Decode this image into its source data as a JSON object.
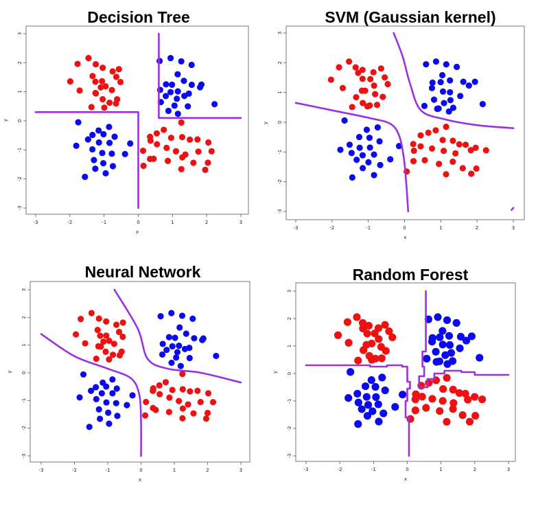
{
  "colors": {
    "red": "#ee1111",
    "blue": "#0a0aee",
    "boundary": "#9b30e0"
  },
  "chart_data": [
    {
      "type": "scatter",
      "title": "Decision Tree",
      "xlabel": "x",
      "ylabel": "y",
      "xlim": [
        -3,
        3
      ],
      "ylim": [
        -3,
        3
      ],
      "ticks": [
        "-3",
        "-2",
        "-1",
        "0",
        "1",
        "2",
        "3"
      ],
      "boundary_style": "step",
      "boundary": [
        [
          [
            -3,
            0.3
          ],
          [
            0,
            0.3
          ],
          [
            0,
            -3
          ]
        ],
        [
          [
            0.6,
            3
          ],
          [
            0.6,
            0.1
          ],
          [
            3,
            0.1
          ]
        ]
      ]
    },
    {
      "type": "scatter",
      "title": "SVM (Gaussian kernel)",
      "xlabel": "x",
      "ylabel": "y",
      "xlim": [
        -3,
        3
      ],
      "ylim": [
        -3,
        3
      ],
      "ticks": [
        "-3",
        "-2",
        "-1",
        "0",
        "1",
        "2",
        "3"
      ],
      "boundary_style": "smooth",
      "boundary": [
        [
          [
            -3,
            0.65
          ],
          [
            -2,
            0.4
          ],
          [
            -1,
            0.15
          ],
          [
            -0.4,
            -0.05
          ],
          [
            -0.15,
            -0.45
          ],
          [
            -0.02,
            -1.2
          ],
          [
            0.05,
            -2.1
          ],
          [
            0.1,
            -3
          ]
        ],
        [
          [
            -0.3,
            3
          ],
          [
            -0.05,
            2.2
          ],
          [
            0.15,
            1.3
          ],
          [
            0.45,
            0.4
          ],
          [
            1.1,
            0.1
          ],
          [
            2.0,
            -0.1
          ],
          [
            3,
            -0.2
          ]
        ],
        [
          [
            2.95,
            -2.95
          ],
          [
            3,
            -2.88
          ]
        ]
      ]
    },
    {
      "type": "scatter",
      "title": "Neural Network",
      "xlabel": "x",
      "ylabel": "y",
      "xlim": [
        -3,
        3
      ],
      "ylim": [
        -3,
        3
      ],
      "ticks": [
        "-3",
        "-2",
        "-1",
        "0",
        "1",
        "2",
        "3"
      ],
      "boundary_style": "smooth",
      "boundary": [
        [
          [
            -3,
            1.4
          ],
          [
            -2,
            0.6
          ],
          [
            -1,
            0.15
          ],
          [
            -0.3,
            -0.2
          ],
          [
            -0.05,
            -0.8
          ],
          [
            0.0,
            -1.8
          ],
          [
            0.0,
            -3
          ]
        ],
        [
          [
            -0.8,
            3
          ],
          [
            -0.1,
            1.6
          ],
          [
            0.2,
            0.5
          ],
          [
            0.8,
            0.15
          ],
          [
            1.8,
            0.0
          ],
          [
            3,
            -0.35
          ]
        ]
      ]
    },
    {
      "type": "scatter",
      "title": "Random Forest",
      "xlabel": "x",
      "ylabel": "y",
      "xlim": [
        -3,
        3
      ],
      "ylim": [
        -3,
        3
      ],
      "ticks": [
        "-3",
        "-2",
        "-1",
        "0",
        "1",
        "2",
        "3"
      ],
      "boundary_style": "step",
      "boundary": [
        [
          [
            -3,
            0.3
          ],
          [
            -1.1,
            0.3
          ],
          [
            -1.1,
            0.25
          ],
          [
            -0.6,
            0.25
          ],
          [
            -0.6,
            0.3
          ],
          [
            -0.15,
            0.3
          ],
          [
            -0.15,
            0.25
          ],
          [
            0.0,
            0.25
          ],
          [
            0.0,
            -0.3
          ],
          [
            0.08,
            -0.3
          ],
          [
            0.08,
            -0.55
          ],
          [
            0.0,
            -0.55
          ],
          [
            0.0,
            -1.0
          ],
          [
            -0.05,
            -1.0
          ],
          [
            -0.05,
            -1.6
          ],
          [
            0.05,
            -1.6
          ],
          [
            0.05,
            -3
          ]
        ],
        [
          [
            0.55,
            3
          ],
          [
            0.55,
            0.8
          ],
          [
            0.45,
            0.8
          ],
          [
            0.45,
            0.25
          ],
          [
            0.5,
            0.25
          ],
          [
            0.5,
            -0.1
          ],
          [
            0.35,
            -0.1
          ],
          [
            0.35,
            -0.5
          ],
          [
            0.6,
            -0.5
          ],
          [
            0.6,
            -0.2
          ],
          [
            0.8,
            -0.2
          ],
          [
            0.8,
            0.0
          ],
          [
            1.1,
            0.0
          ],
          [
            1.1,
            0.1
          ],
          [
            1.6,
            0.1
          ],
          [
            1.6,
            0.05
          ],
          [
            2.0,
            0.05
          ],
          [
            2.0,
            -0.05
          ],
          [
            3,
            -0.05
          ]
        ]
      ]
    }
  ],
  "points": {
    "red": [
      [
        -1.8,
        1.9
      ],
      [
        -1.5,
        2.1
      ],
      [
        -1.3,
        1.9
      ],
      [
        -1.1,
        1.8
      ],
      [
        -0.8,
        1.7
      ],
      [
        -0.6,
        1.8
      ],
      [
        -2.0,
        1.4
      ],
      [
        -1.7,
        1.1
      ],
      [
        -1.3,
        1.6
      ],
      [
        -1.2,
        1.4
      ],
      [
        -1.0,
        1.4
      ],
      [
        -0.9,
        1.2
      ],
      [
        -0.6,
        1.5
      ],
      [
        -0.5,
        1.3
      ],
      [
        -1.1,
        1.1
      ],
      [
        -0.8,
        1.0
      ],
      [
        -1.3,
        0.9
      ],
      [
        -1.1,
        0.7
      ],
      [
        -0.9,
        0.6
      ],
      [
        -0.7,
        0.6
      ],
      [
        -1.4,
        0.5
      ],
      [
        -1.0,
        0.5
      ],
      [
        -0.6,
        0.8
      ],
      [
        -1.2,
        1.0
      ],
      [
        0.4,
        -0.5
      ],
      [
        0.6,
        -0.4
      ],
      [
        0.8,
        -0.3
      ],
      [
        1.0,
        -0.6
      ],
      [
        1.3,
        -0.6
      ],
      [
        1.5,
        -0.7
      ],
      [
        1.7,
        -0.7
      ],
      [
        2.0,
        -0.8
      ],
      [
        1.2,
        -0.1
      ],
      [
        0.3,
        -0.7
      ],
      [
        0.5,
        -0.8
      ],
      [
        0.8,
        -0.9
      ],
      [
        1.1,
        -1.0
      ],
      [
        1.4,
        -1.1
      ],
      [
        1.8,
        -1.0
      ],
      [
        2.2,
        -1.0
      ],
      [
        0.2,
        -1.0
      ],
      [
        0.5,
        -1.3
      ],
      [
        0.9,
        -1.4
      ],
      [
        1.3,
        -1.3
      ],
      [
        1.6,
        -1.5
      ],
      [
        2.0,
        -1.5
      ],
      [
        0.1,
        -1.6
      ],
      [
        1.2,
        -1.7
      ],
      [
        1.9,
        -1.7
      ],
      [
        0.3,
        -1.3
      ]
    ],
    "blue": [
      [
        0.6,
        2.0
      ],
      [
        0.9,
        2.1
      ],
      [
        1.2,
        2.0
      ],
      [
        1.5,
        1.9
      ],
      [
        1.1,
        1.6
      ],
      [
        1.3,
        1.4
      ],
      [
        0.8,
        1.3
      ],
      [
        1.0,
        1.3
      ],
      [
        1.6,
        1.3
      ],
      [
        1.9,
        1.3
      ],
      [
        0.7,
        1.1
      ],
      [
        1.0,
        1.0
      ],
      [
        1.2,
        1.0
      ],
      [
        1.5,
        0.9
      ],
      [
        0.8,
        0.8
      ],
      [
        1.1,
        0.7
      ],
      [
        1.3,
        0.8
      ],
      [
        0.6,
        0.6
      ],
      [
        1.0,
        0.5
      ],
      [
        1.4,
        0.5
      ],
      [
        2.2,
        0.6
      ],
      [
        1.8,
        1.2
      ],
      [
        0.9,
        0.4
      ],
      [
        1.2,
        0.3
      ],
      [
        -1.7,
        0.0
      ],
      [
        -1.1,
        -0.3
      ],
      [
        -0.8,
        -0.2
      ],
      [
        -1.3,
        -0.5
      ],
      [
        -1.0,
        -0.5
      ],
      [
        -0.7,
        -0.6
      ],
      [
        -1.5,
        -0.7
      ],
      [
        -1.2,
        -0.8
      ],
      [
        -0.9,
        -0.8
      ],
      [
        -1.4,
        -1.0
      ],
      [
        -1.1,
        -1.1
      ],
      [
        -0.8,
        -1.1
      ],
      [
        -1.3,
        -1.3
      ],
      [
        -1.0,
        -1.4
      ],
      [
        -0.7,
        -1.5
      ],
      [
        -1.2,
        -1.6
      ],
      [
        -1.5,
        -1.9
      ],
      [
        -0.9,
        -1.8
      ],
      [
        -0.2,
        -0.8
      ],
      [
        -1.8,
        -0.9
      ],
      [
        -0.4,
        -1.2
      ]
    ]
  }
}
